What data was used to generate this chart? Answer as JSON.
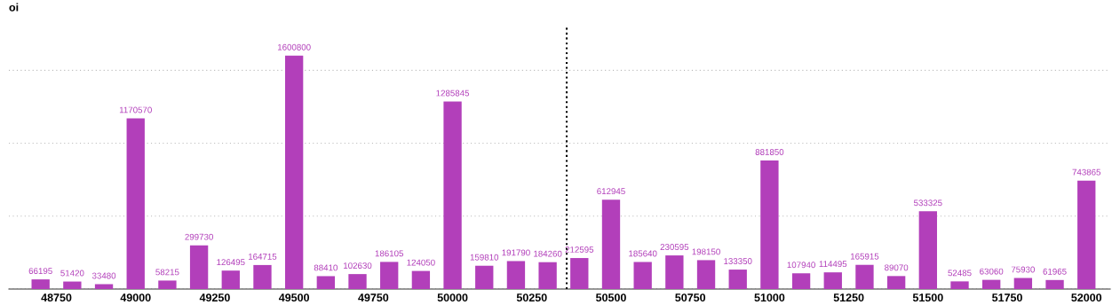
{
  "chart_data": {
    "type": "bar",
    "ylabel": "oi",
    "x": [
      48700,
      48800,
      48900,
      49000,
      49100,
      49200,
      49300,
      49400,
      49500,
      49600,
      49700,
      49800,
      49900,
      50000,
      50100,
      50200,
      50300,
      50400,
      50500,
      50600,
      50700,
      50800,
      50900,
      51000,
      51100,
      51200,
      51300,
      51400,
      51500,
      51600,
      51700,
      51800,
      51900,
      52000
    ],
    "values": [
      66195,
      51420,
      33480,
      1170570,
      58215,
      299730,
      126495,
      164715,
      1600800,
      88410,
      102630,
      186105,
      124050,
      1285845,
      159810,
      191790,
      184260,
      212595,
      612945,
      185640,
      230595,
      198150,
      133350,
      881850,
      107940,
      114495,
      165915,
      89070,
      533325,
      52485,
      63060,
      75930,
      61965,
      743865
    ],
    "color": "#b23fba",
    "data_labels": true,
    "xlim": [
      48600,
      52075
    ],
    "xticks": [
      48750,
      49000,
      49250,
      49500,
      49750,
      50000,
      50250,
      50500,
      50750,
      51000,
      51250,
      51500,
      51750,
      52000
    ],
    "ylim": [
      0,
      1800000
    ],
    "yticks": [
      {
        "value": 0,
        "label": null
      },
      {
        "value": 500000,
        "label": null
      },
      {
        "value": 1000000,
        "label": null
      },
      {
        "value": 1500000,
        "label": null
      }
    ],
    "tick_labels": "x",
    "grid": "y",
    "ref_lines": [
      {
        "axis": "x",
        "value": 50360,
        "color": "#000000",
        "line_style": "dotted"
      }
    ]
  }
}
